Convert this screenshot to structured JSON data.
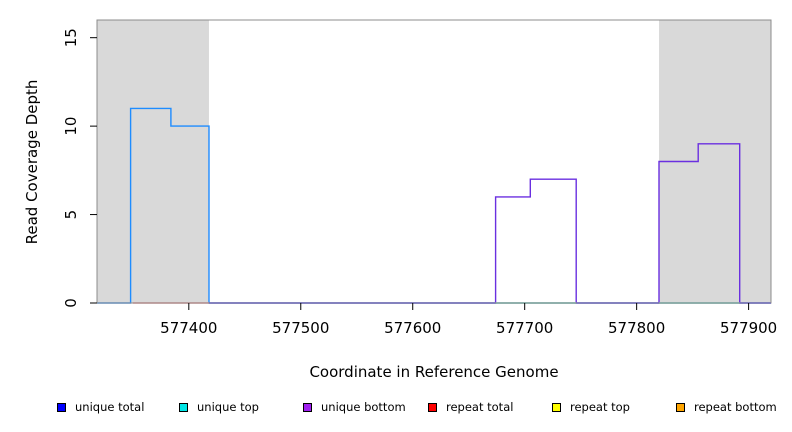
{
  "chart_data": {
    "type": "line",
    "xlabel": "Coordinate in Reference Genome",
    "ylabel": "Read Coverage Depth",
    "xlim": [
      577318,
      577920
    ],
    "ylim": [
      0,
      16
    ],
    "x_ticks": [
      577400,
      577500,
      577600,
      577700,
      577800,
      577900
    ],
    "x_tick_labels": [
      "577400",
      "577500",
      "577600",
      "577700",
      "577800",
      "577900"
    ],
    "y_ticks": [
      0,
      5,
      10,
      15
    ],
    "y_tick_labels": [
      "0",
      "5",
      "10",
      "15"
    ],
    "shaded_regions": [
      [
        577318,
        577418
      ],
      [
        577820,
        577920
      ]
    ],
    "series": [
      {
        "name": "unique total",
        "color": "#1e8cff",
        "x": [
          577318,
          577348,
          577348,
          577384,
          577384,
          577418,
          577418,
          577920
        ],
        "y": [
          0,
          0,
          11,
          11,
          10,
          10,
          0,
          0
        ]
      },
      {
        "name": "unique bottom",
        "color": "#6a2fe0",
        "x": [
          577418,
          577674,
          577674,
          577705,
          577705,
          577746,
          577746,
          577820,
          577820,
          577855,
          577855,
          577892,
          577892,
          577920
        ],
        "y": [
          0,
          0,
          6,
          6,
          7,
          7,
          0,
          0,
          8,
          8,
          9,
          9,
          0,
          0
        ]
      },
      {
        "name": "repeat total",
        "color": "#f08080",
        "x": [
          577350,
          577418
        ],
        "y": [
          0,
          0
        ]
      },
      {
        "name": "repeat top",
        "color": "#9be59b",
        "x": [
          577674,
          577746
        ],
        "y": [
          0,
          0
        ]
      },
      {
        "name": "repeat bottom",
        "color": "#9be59b",
        "x": [
          577820,
          577892
        ],
        "y": [
          0,
          0
        ]
      }
    ],
    "legend": [
      {
        "label": "unique total",
        "color": "#0000ff"
      },
      {
        "label": "unique top",
        "color": "#00e5e5"
      },
      {
        "label": "unique bottom",
        "color": "#a020f0"
      },
      {
        "label": "repeat total",
        "color": "#ff0000"
      },
      {
        "label": "repeat top",
        "color": "#ffff00"
      },
      {
        "label": "repeat bottom",
        "color": "#ffa500"
      }
    ],
    "legend_placement": "bottom",
    "grid": false
  }
}
